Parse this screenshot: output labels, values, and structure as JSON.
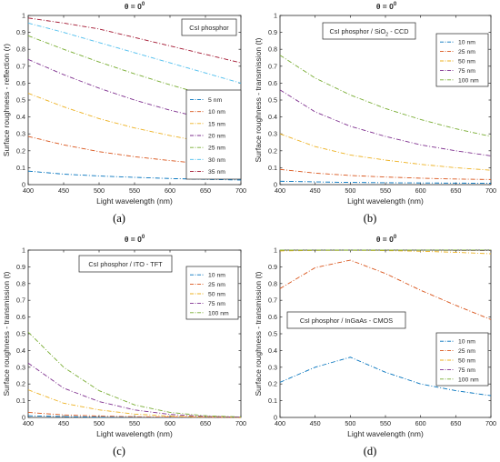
{
  "chart_data": [
    {
      "type": "line",
      "label": "(a)",
      "title": "θ = 0",
      "title_sup": "0",
      "xlabel": "Light wavelength (nm)",
      "ylabel": "Surface roughness - reflection (r)",
      "annotation": "CsI phosphor",
      "xlim": [
        400,
        700
      ],
      "ylim": [
        0,
        1
      ],
      "xticks": [
        "400",
        "450",
        "500",
        "550",
        "600",
        "650",
        "700"
      ],
      "yticks": [
        "0",
        "0.1",
        "0.2",
        "0.3",
        "0.4",
        "0.5",
        "0.6",
        "0.7",
        "0.8",
        "0.9",
        "1"
      ],
      "x": [
        400,
        450,
        500,
        550,
        600,
        650,
        700
      ],
      "series": [
        {
          "name": "5 nm",
          "values": [
            0.08,
            0.062,
            0.051,
            0.043,
            0.036,
            0.031,
            0.027
          ]
        },
        {
          "name": "10 nm",
          "values": [
            0.285,
            0.235,
            0.195,
            0.165,
            0.142,
            0.122,
            0.105
          ]
        },
        {
          "name": "15 nm",
          "values": [
            0.54,
            0.46,
            0.39,
            0.335,
            0.29,
            0.25,
            0.22
          ]
        },
        {
          "name": "20 nm",
          "values": [
            0.74,
            0.65,
            0.57,
            0.5,
            0.44,
            0.39,
            0.345
          ]
        },
        {
          "name": "25 nm",
          "values": [
            0.88,
            0.8,
            0.725,
            0.655,
            0.59,
            0.53,
            0.475
          ]
        },
        {
          "name": "30 nm",
          "values": [
            0.955,
            0.9,
            0.84,
            0.78,
            0.72,
            0.66,
            0.6
          ]
        },
        {
          "name": "35 nm",
          "values": [
            0.985,
            0.955,
            0.92,
            0.87,
            0.82,
            0.77,
            0.72
          ]
        }
      ],
      "colors": [
        "#0072BD",
        "#D95319",
        "#EDB120",
        "#7E2F8E",
        "#77AC30",
        "#4DBEEE",
        "#A2142F"
      ],
      "legend": "right"
    },
    {
      "type": "line",
      "label": "(b)",
      "title": "θ = 0",
      "title_sup": "0",
      "xlabel": "Light wavelength (nm)",
      "ylabel": "Surface roughness - transmission (t)",
      "annotation": "CsI phosphor / SiO",
      "annotation_sub": "2",
      "annotation_tail": " - CCD",
      "xlim": [
        400,
        700
      ],
      "ylim": [
        0,
        1
      ],
      "xticks": [
        "400",
        "450",
        "500",
        "550",
        "600",
        "650",
        "700"
      ],
      "yticks": [
        "0",
        "0.1",
        "0.2",
        "0.3",
        "0.4",
        "0.5",
        "0.6",
        "0.7",
        "0.8",
        "0.9",
        "1"
      ],
      "x": [
        400,
        450,
        500,
        550,
        600,
        650,
        700
      ],
      "series": [
        {
          "name": "10 nm",
          "values": [
            0.02,
            0.016,
            0.013,
            0.011,
            0.01,
            0.009,
            0.008
          ]
        },
        {
          "name": "25 nm",
          "values": [
            0.09,
            0.068,
            0.054,
            0.045,
            0.038,
            0.033,
            0.03
          ]
        },
        {
          "name": "50 nm",
          "values": [
            0.3,
            0.225,
            0.175,
            0.145,
            0.12,
            0.1,
            0.085
          ]
        },
        {
          "name": "75 nm",
          "values": [
            0.56,
            0.43,
            0.345,
            0.285,
            0.235,
            0.2,
            0.17
          ]
        },
        {
          "name": "100 nm",
          "values": [
            0.765,
            0.63,
            0.53,
            0.45,
            0.385,
            0.33,
            0.285
          ]
        }
      ],
      "colors": [
        "#0072BD",
        "#D95319",
        "#EDB120",
        "#7E2F8E",
        "#77AC30"
      ],
      "legend": "top-right"
    },
    {
      "type": "line",
      "label": "(c)",
      "title": "θ = 0",
      "title_sup": "0",
      "xlabel": "Light wavelength (nm)",
      "ylabel": "Surface roughness - transmission (t)",
      "annotation": "CsI phosphor / ITO - TFT",
      "xlim": [
        400,
        700
      ],
      "ylim": [
        0,
        1
      ],
      "xticks": [
        "400",
        "450",
        "500",
        "550",
        "600",
        "650",
        "700"
      ],
      "yticks": [
        "0",
        "0.1",
        "0.2",
        "0.3",
        "0.4",
        "0.5",
        "0.6",
        "0.7",
        "0.8",
        "0.9",
        "1"
      ],
      "x": [
        400,
        450,
        500,
        550,
        600,
        650,
        700
      ],
      "series": [
        {
          "name": "10 nm",
          "values": [
            0.01,
            0.005,
            0.002,
            0.001,
            0.0,
            0.0,
            0.0
          ]
        },
        {
          "name": "25 nm",
          "values": [
            0.03,
            0.015,
            0.008,
            0.004,
            0.002,
            0.001,
            0.0
          ]
        },
        {
          "name": "50 nm",
          "values": [
            0.165,
            0.085,
            0.045,
            0.02,
            0.008,
            0.003,
            0.001
          ]
        },
        {
          "name": "75 nm",
          "values": [
            0.325,
            0.175,
            0.095,
            0.045,
            0.018,
            0.006,
            0.002
          ]
        },
        {
          "name": "100 nm",
          "values": [
            0.51,
            0.3,
            0.16,
            0.075,
            0.03,
            0.01,
            0.003
          ]
        }
      ],
      "colors": [
        "#0072BD",
        "#D95319",
        "#EDB120",
        "#7E2F8E",
        "#77AC30"
      ],
      "legend": "top-right"
    },
    {
      "type": "line",
      "label": "(d)",
      "title": "θ = 0",
      "title_sup": "0",
      "xlabel": "Light wavelength (nm)",
      "ylabel": "Surface roughness - transmission (t)",
      "annotation": "CsI phosphor / InGaAs - CMOS",
      "xlim": [
        400,
        700
      ],
      "ylim": [
        0,
        1
      ],
      "xticks": [
        "400",
        "450",
        "500",
        "550",
        "600",
        "650",
        "700"
      ],
      "yticks": [
        "0",
        "0.1",
        "0.2",
        "0.3",
        "0.4",
        "0.5",
        "0.6",
        "0.7",
        "0.8",
        "0.9",
        "1"
      ],
      "x": [
        400,
        450,
        500,
        550,
        600,
        650,
        700
      ],
      "series": [
        {
          "name": "10 nm",
          "values": [
            0.21,
            0.3,
            0.36,
            0.27,
            0.2,
            0.16,
            0.13
          ]
        },
        {
          "name": "25 nm",
          "values": [
            0.77,
            0.895,
            0.94,
            0.86,
            0.76,
            0.67,
            0.585
          ]
        },
        {
          "name": "50 nm",
          "values": [
            0.995,
            0.998,
            0.999,
            0.997,
            0.993,
            0.987,
            0.978
          ]
        },
        {
          "name": "75 nm",
          "values": [
            1.0,
            1.0,
            1.0,
            1.0,
            0.999,
            0.998,
            0.997
          ]
        },
        {
          "name": "100 nm",
          "values": [
            1.0,
            1.0,
            1.0,
            1.0,
            1.0,
            1.0,
            1.0
          ]
        }
      ],
      "colors": [
        "#0072BD",
        "#D95319",
        "#EDB120",
        "#7E2F8E",
        "#77AC30"
      ],
      "legend": "bottom-right"
    }
  ]
}
